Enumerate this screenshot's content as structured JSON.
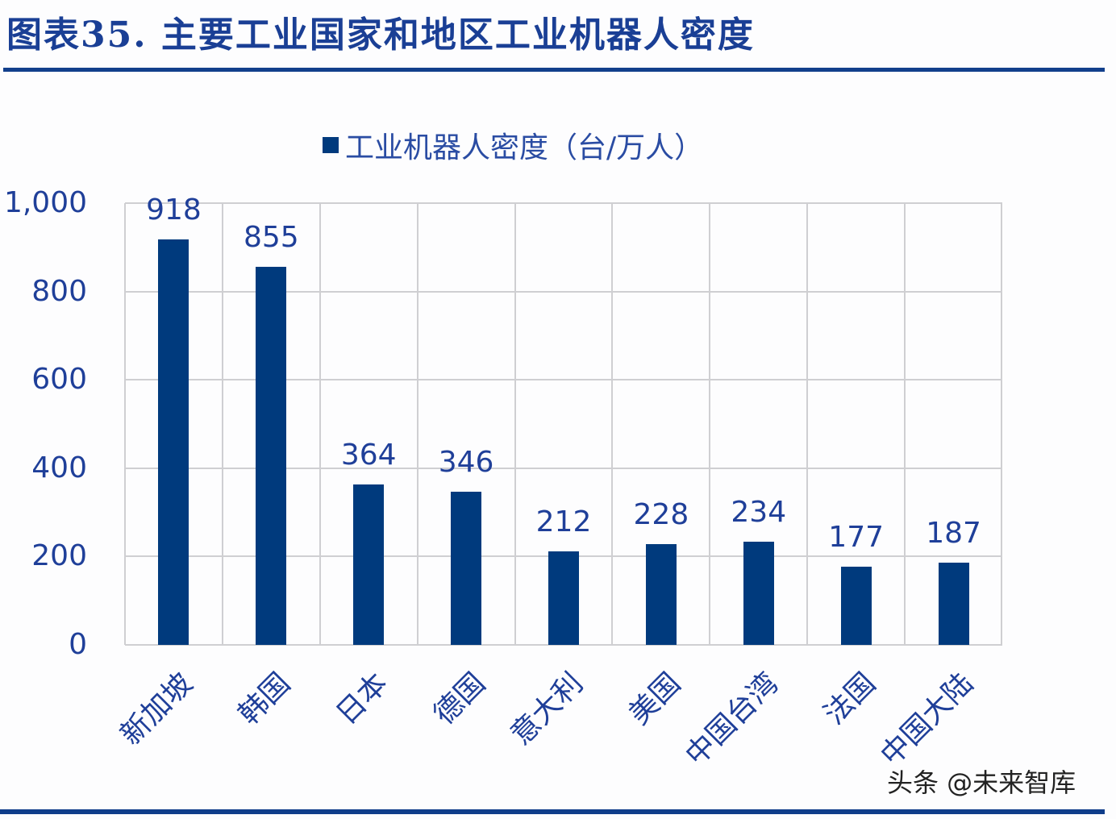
{
  "header": {
    "title": "图表35.  主要工业国家和地区工业机器人密度"
  },
  "legend": {
    "label": "工业机器人密度（台/万人）",
    "color": "#003A7D"
  },
  "y_axis": {
    "ticks": [
      "0",
      "200",
      "400",
      "600",
      "800",
      "1,000"
    ]
  },
  "x_axis": {
    "categories": [
      "新加坡",
      "韩国",
      "日本",
      "德国",
      "意大利",
      "美国",
      "中国台湾",
      "法国",
      "中国大陆"
    ]
  },
  "data_labels": [
    "918",
    "855",
    "364",
    "346",
    "212",
    "228",
    "234",
    "177",
    "187"
  ],
  "watermark": "头条 @未来智库",
  "colors": {
    "bar": "#003A7D",
    "text": "#1F3F99",
    "rule": "#0F3D8A",
    "grid": "#CFCFD2"
  },
  "chart_data": {
    "type": "bar",
    "title": "主要工业国家和地区工业机器人密度",
    "figure_label": "图表35.",
    "categories": [
      "新加坡",
      "韩国",
      "日本",
      "德国",
      "意大利",
      "美国",
      "中国台湾",
      "法国",
      "中国大陆"
    ],
    "series": [
      {
        "name": "工业机器人密度（台/万人）",
        "values": [
          918,
          855,
          364,
          346,
          212,
          228,
          234,
          177,
          187
        ]
      }
    ],
    "xlabel": "",
    "ylabel": "",
    "ylim": [
      0,
      1000
    ],
    "yticks": [
      0,
      200,
      400,
      600,
      800,
      1000
    ],
    "grid": true,
    "legend_position": "top",
    "data_labels": true
  }
}
